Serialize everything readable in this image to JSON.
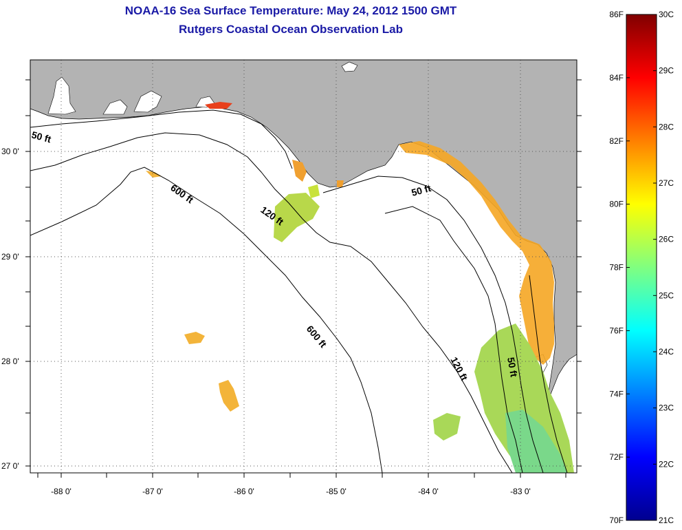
{
  "title": {
    "line1": "NOAA-16 Sea Surface Temperature:  May 24, 2012 1500 GMT",
    "line2": "Rutgers Coastal Ocean Observation Lab"
  },
  "map": {
    "lon_ticks": [
      "-88 0'",
      "-87 0'",
      "-86 0'",
      "-85 0'",
      "-84 0'",
      "-83 0'"
    ],
    "lat_ticks": [
      "30 0'",
      "29 0'",
      "28 0'",
      "27 0'"
    ],
    "contour_labels": [
      "50 ft",
      "600 ft",
      "120 ft",
      "50 ft",
      "600 ft",
      "120 ft",
      "50 ft"
    ],
    "colors": {
      "land": "#b3b3b3",
      "water_nodata": "#ffffff",
      "coastline": "#000000"
    }
  },
  "colorbar": {
    "fahrenheit_labels": [
      "86F",
      "84F",
      "82F",
      "80F",
      "78F",
      "76F",
      "74F",
      "72F",
      "70F"
    ],
    "celsius_labels": [
      "30C",
      "29C",
      "28C",
      "27C",
      "26C",
      "25C",
      "24C",
      "23C",
      "22C",
      "21C"
    ],
    "colors": [
      "#00008f",
      "#0000ff",
      "#0080ff",
      "#00ffff",
      "#80ff80",
      "#ffff00",
      "#ff8000",
      "#ff0000",
      "#800000"
    ]
  }
}
